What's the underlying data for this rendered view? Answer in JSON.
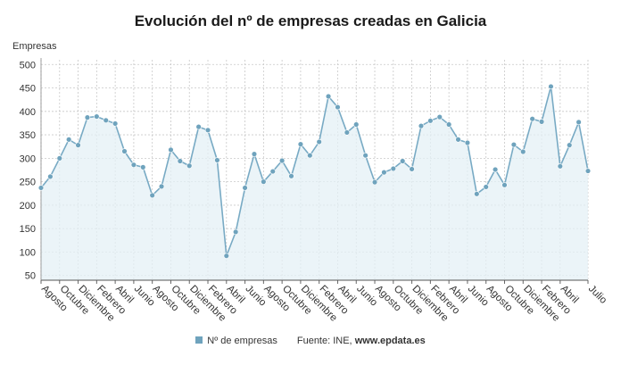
{
  "colors": {
    "line": "#78aac4",
    "marker": "#6fa3bd",
    "fill": "#e4f0f6",
    "grid": "#c8c8c8"
  },
  "chart_data": {
    "type": "line",
    "title": "Evolución del nº de empresas creadas en Galicia",
    "ylabel": "Empresas",
    "ylim": [
      40,
      510
    ],
    "yticks": [
      50,
      100,
      150,
      200,
      250,
      300,
      350,
      400,
      450,
      500
    ],
    "grid": true,
    "legend_position": "bottom",
    "x_tick_labels": [
      {
        "i": 0,
        "label": "Agosto"
      },
      {
        "i": 2,
        "label": "Octubre"
      },
      {
        "i": 4,
        "label": "Diciembre"
      },
      {
        "i": 6,
        "label": "Febrero"
      },
      {
        "i": 8,
        "label": "Abril"
      },
      {
        "i": 10,
        "label": "Junio"
      },
      {
        "i": 12,
        "label": "Agosto"
      },
      {
        "i": 14,
        "label": "Octubre"
      },
      {
        "i": 16,
        "label": "Diciembre"
      },
      {
        "i": 18,
        "label": "Febrero"
      },
      {
        "i": 20,
        "label": "Abril"
      },
      {
        "i": 22,
        "label": "Junio"
      },
      {
        "i": 24,
        "label": "Agosto"
      },
      {
        "i": 26,
        "label": "Octubre"
      },
      {
        "i": 28,
        "label": "Diciembre"
      },
      {
        "i": 30,
        "label": "Febrero"
      },
      {
        "i": 32,
        "label": "Abril"
      },
      {
        "i": 34,
        "label": "Junio"
      },
      {
        "i": 36,
        "label": "Agosto"
      },
      {
        "i": 38,
        "label": "Octubre"
      },
      {
        "i": 40,
        "label": "Diciembre"
      },
      {
        "i": 42,
        "label": "Febrero"
      },
      {
        "i": 44,
        "label": "Abril"
      },
      {
        "i": 46,
        "label": "Junio"
      },
      {
        "i": 48,
        "label": "Agosto"
      },
      {
        "i": 50,
        "label": "Octubre"
      },
      {
        "i": 52,
        "label": "Diciembre"
      },
      {
        "i": 54,
        "label": "Febrero"
      },
      {
        "i": 56,
        "label": "Abril"
      },
      {
        "i": 59,
        "label": "Julio"
      }
    ],
    "series": [
      {
        "name": "Nº de empresas",
        "values": [
          237,
          261,
          300,
          340,
          328,
          387,
          389,
          381,
          374,
          315,
          286,
          281,
          221,
          240,
          318,
          294,
          284,
          367,
          360,
          296,
          92,
          143,
          237,
          309,
          250,
          272,
          295,
          262,
          330,
          306,
          335,
          432,
          409,
          355,
          372,
          306,
          249,
          270,
          278,
          294,
          277,
          369,
          380,
          388,
          372,
          340,
          333,
          224,
          239,
          276,
          243,
          329,
          314,
          384,
          378,
          453,
          283,
          328,
          377,
          273
        ]
      }
    ]
  },
  "legend": {
    "series_label": "Nº de empresas",
    "source_label": "Fuente: INE,",
    "source_site": "www.epdata.es"
  }
}
